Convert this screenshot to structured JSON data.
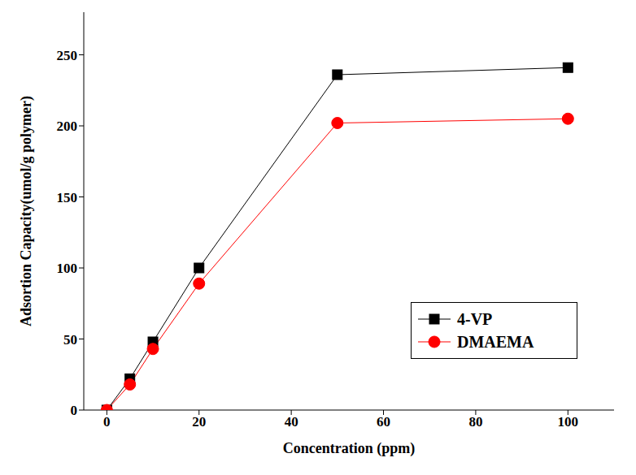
{
  "chart_data": {
    "type": "line",
    "x_label": "Concentration (ppm)",
    "y_label": "Adsortion Capacity(umol/g polymer)",
    "x": [
      0,
      5,
      10,
      20,
      50,
      100
    ],
    "series": [
      {
        "name": "4-VP",
        "color": "#000000",
        "marker": "square",
        "values": [
          0,
          22,
          48,
          100,
          236,
          241
        ]
      },
      {
        "name": "DMAEMA",
        "color": "#ff0000",
        "marker": "circle",
        "values": [
          0,
          18,
          43,
          89,
          202,
          205
        ]
      }
    ],
    "xlim": [
      -5,
      110
    ],
    "xticks": [
      0,
      20,
      40,
      60,
      80,
      100
    ],
    "ylim": [
      0,
      280
    ],
    "yticks": [
      0,
      50,
      100,
      150,
      200,
      250
    ],
    "legend": "lower right",
    "grid": false
  }
}
